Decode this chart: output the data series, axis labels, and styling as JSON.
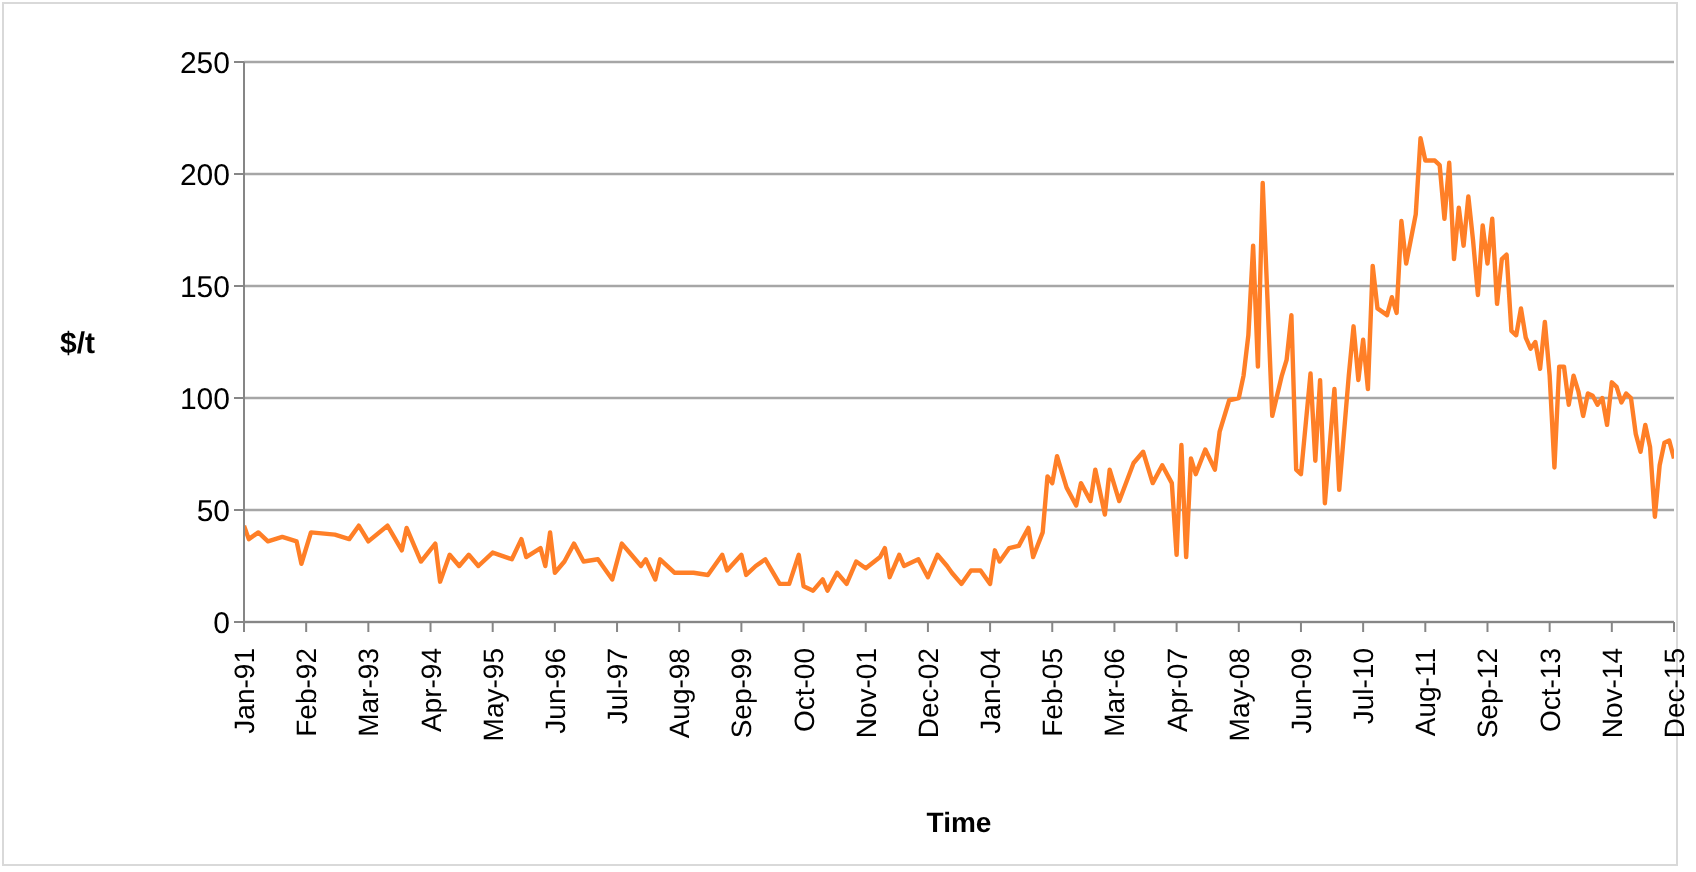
{
  "chart_data": {
    "type": "line",
    "xlabel": "Time",
    "ylabel": "$/t",
    "grid": "y",
    "marker": "none",
    "line_style": "solid",
    "x": [
      "1991-01",
      "1991-02",
      "1991-04",
      "1991-06",
      "1991-09",
      "1991-12",
      "1992-01",
      "1992-03",
      "1992-08",
      "1992-11",
      "1993-01",
      "1993-03",
      "1993-07",
      "1993-10",
      "1993-11",
      "1994-02",
      "1994-05",
      "1994-06",
      "1994-08",
      "1994-10",
      "1994-12",
      "1995-02",
      "1995-05",
      "1995-09",
      "1995-11",
      "1995-12",
      "1996-03",
      "1996-04",
      "1996-05",
      "1996-06",
      "1996-08",
      "1996-10",
      "1996-12",
      "1997-03",
      "1997-05",
      "1997-06",
      "1997-08",
      "1997-10",
      "1997-12",
      "1998-01",
      "1998-03",
      "1998-04",
      "1998-07",
      "1998-11",
      "1999-02",
      "1999-05",
      "1999-06",
      "1999-09",
      "1999-10",
      "1999-12",
      "2000-02",
      "2000-05",
      "2000-07",
      "2000-09",
      "2000-10",
      "2000-12",
      "2001-02",
      "2001-03",
      "2001-05",
      "2001-07",
      "2001-09",
      "2001-11",
      "2002-02",
      "2002-03",
      "2002-04",
      "2002-06",
      "2002-07",
      "2002-10",
      "2002-12",
      "2003-02",
      "2003-04",
      "2003-05",
      "2003-07",
      "2003-09",
      "2003-11",
      "2004-01",
      "2004-02",
      "2004-03",
      "2004-05",
      "2004-07",
      "2004-08",
      "2004-09",
      "2004-10",
      "2004-12",
      "2005-01",
      "2005-02",
      "2005-03",
      "2005-05",
      "2005-07",
      "2005-08",
      "2005-10",
      "2005-11",
      "2006-01",
      "2006-02",
      "2006-04",
      "2006-07",
      "2006-09",
      "2006-11",
      "2007-01",
      "2007-03",
      "2007-04",
      "2007-05",
      "2007-06",
      "2007-07",
      "2007-08",
      "2007-10",
      "2007-12",
      "2008-01",
      "2008-03",
      "2008-05",
      "2008-06",
      "2008-07",
      "2008-08",
      "2008-09",
      "2008-10",
      "2008-12",
      "2009-02",
      "2009-03",
      "2009-04",
      "2009-05",
      "2009-06",
      "2009-08",
      "2009-09",
      "2009-10",
      "2009-11",
      "2010-01",
      "2010-02",
      "2010-04",
      "2010-05",
      "2010-06",
      "2010-07",
      "2010-08",
      "2010-09",
      "2010-10",
      "2010-12",
      "2011-01",
      "2011-02",
      "2011-03",
      "2011-04",
      "2011-06",
      "2011-07",
      "2011-08",
      "2011-10",
      "2011-11",
      "2011-12",
      "2012-01",
      "2012-02",
      "2012-03",
      "2012-04",
      "2012-05",
      "2012-06",
      "2012-07",
      "2012-08",
      "2012-09",
      "2012-10",
      "2012-11",
      "2012-12",
      "2013-01",
      "2013-02",
      "2013-03",
      "2013-04",
      "2013-05",
      "2013-06",
      "2013-07",
      "2013-08",
      "2013-09",
      "2013-10",
      "2013-11",
      "2013-12",
      "2014-01",
      "2014-02",
      "2014-03",
      "2014-04",
      "2014-05",
      "2014-06",
      "2014-07",
      "2014-08",
      "2014-09",
      "2014-10",
      "2014-11",
      "2014-12",
      "2015-01",
      "2015-02",
      "2015-03",
      "2015-04",
      "2015-05",
      "2015-06",
      "2015-07",
      "2015-08",
      "2015-09",
      "2015-10",
      "2015-11",
      "2015-12"
    ],
    "series": [
      {
        "color": "#ff7f27",
        "values": [
          43,
          37,
          40,
          36,
          38,
          36,
          26,
          40,
          39,
          37,
          43,
          36,
          43,
          32,
          42,
          27,
          35,
          18,
          30,
          25,
          30,
          25,
          31,
          28,
          37,
          29,
          33,
          25,
          40,
          22,
          27,
          35,
          27,
          28,
          22,
          19,
          35,
          30,
          25,
          28,
          19,
          28,
          22,
          22,
          21,
          30,
          23,
          30,
          21,
          25,
          28,
          17,
          17,
          30,
          16,
          14,
          19,
          14,
          22,
          17,
          27,
          24,
          29,
          33,
          20,
          30,
          25,
          28,
          20,
          30,
          25,
          22,
          17,
          23,
          23,
          17,
          32,
          27,
          33,
          34,
          38,
          42,
          29,
          40,
          65,
          62,
          74,
          60,
          52,
          62,
          54,
          68,
          48,
          68,
          54,
          71,
          76,
          62,
          70,
          62,
          30,
          79,
          29,
          73,
          66,
          77,
          68,
          85,
          99,
          100,
          110,
          128,
          168,
          114,
          196,
          92,
          110,
          117,
          137,
          68,
          66,
          111,
          72,
          108,
          53,
          104,
          59,
          110,
          132,
          108,
          126,
          104,
          159,
          140,
          137,
          145,
          138,
          179,
          160,
          182,
          216,
          206,
          206,
          204,
          180,
          205,
          162,
          185,
          168,
          190,
          170,
          146,
          177,
          160,
          180,
          142,
          162,
          164,
          130,
          128,
          140,
          127,
          122,
          125,
          113,
          134,
          110,
          69,
          114,
          114,
          97,
          110,
          103,
          92,
          102,
          101,
          97,
          100,
          88,
          107,
          105,
          98,
          102,
          100,
          84,
          76,
          88,
          78,
          47,
          70,
          80,
          81,
          73
        ]
      }
    ],
    "xlim": [
      "1991-01",
      "2015-12"
    ],
    "xticks": [
      {
        "value": "1991-01",
        "label": "Jan-91"
      },
      {
        "value": "1992-02",
        "label": "Feb-92"
      },
      {
        "value": "1993-03",
        "label": "Mar-93"
      },
      {
        "value": "1994-04",
        "label": "Apr-94"
      },
      {
        "value": "1995-05",
        "label": "May-95"
      },
      {
        "value": "1996-06",
        "label": "Jun-96"
      },
      {
        "value": "1997-07",
        "label": "Jul-97"
      },
      {
        "value": "1998-08",
        "label": "Aug-98"
      },
      {
        "value": "1999-09",
        "label": "Sep-99"
      },
      {
        "value": "2000-10",
        "label": "Oct-00"
      },
      {
        "value": "2001-11",
        "label": "Nov-01"
      },
      {
        "value": "2002-12",
        "label": "Dec-02"
      },
      {
        "value": "2004-01",
        "label": "Jan-04"
      },
      {
        "value": "2005-02",
        "label": "Feb-05"
      },
      {
        "value": "2006-03",
        "label": "Mar-06"
      },
      {
        "value": "2007-04",
        "label": "Apr-07"
      },
      {
        "value": "2008-05",
        "label": "May-08"
      },
      {
        "value": "2009-06",
        "label": "Jun-09"
      },
      {
        "value": "2010-07",
        "label": "Jul-10"
      },
      {
        "value": "2011-08",
        "label": "Aug-11"
      },
      {
        "value": "2012-09",
        "label": "Sep-12"
      },
      {
        "value": "2013-10",
        "label": "Oct-13"
      },
      {
        "value": "2014-11",
        "label": "Nov-14"
      },
      {
        "value": "2015-12",
        "label": "Dec-15"
      }
    ],
    "ylim": [
      0,
      250
    ],
    "yticks": [
      0,
      50,
      100,
      150,
      200,
      250
    ]
  }
}
